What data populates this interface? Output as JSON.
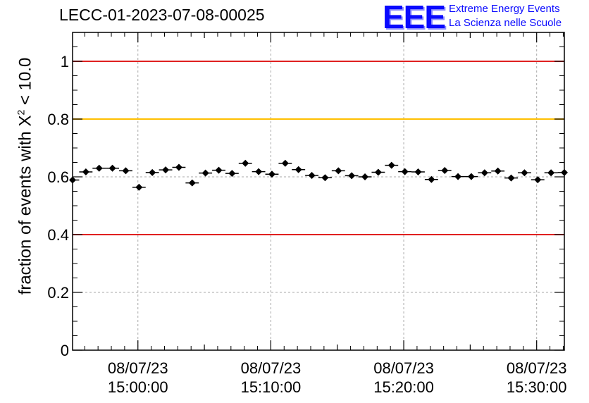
{
  "header": {
    "run_id": "LECC-01-2023-07-08-00025",
    "logo_letters": "EEE",
    "logo_line1": "Extreme Energy Events",
    "logo_line2": "La Scienza nelle Scuole",
    "logo_color": "#0a0aff"
  },
  "ylabel_parts": {
    "prefix": "fraction of events with X",
    "superscript": "2",
    "suffix": " < 10.0"
  },
  "chart_data": {
    "type": "scatter",
    "title": "LECC-01-2023-07-08-00025",
    "ylabel": "fraction of events with X² < 10.0",
    "xlabel": "",
    "ylim": [
      0,
      1.1
    ],
    "x_range": [
      "14:55:05",
      "15:32:05"
    ],
    "x_ticks": [
      {
        "time": "14:55:00",
        "label": ""
      },
      {
        "time": "15:00:00",
        "label": "08/07/23\n15:00:00"
      },
      {
        "time": "15:05:00",
        "label": ""
      },
      {
        "time": "15:10:00",
        "label": "08/07/23\n15:10:00"
      },
      {
        "time": "15:15:00",
        "label": ""
      },
      {
        "time": "15:20:00",
        "label": "08/07/23\n15:20:00"
      },
      {
        "time": "15:25:00",
        "label": ""
      },
      {
        "time": "15:30:00",
        "label": "08/07/23\n15:30:00"
      }
    ],
    "y_ticks": [
      0,
      0.2,
      0.4,
      0.6,
      0.8,
      1
    ],
    "y_tick_labels": [
      "0",
      "0.2",
      "0.4",
      "0.6",
      "0.8",
      "1"
    ],
    "grid": true,
    "reference_lines": [
      {
        "y": 1.0,
        "color": "#e02020"
      },
      {
        "y": 0.8,
        "color": "#ffbf00"
      },
      {
        "y": 0.4,
        "color": "#e02020"
      }
    ],
    "series": [
      {
        "marker": "diamond",
        "color": "#000000",
        "x_bin_width_seconds": 60,
        "x": [
          "14:55:05",
          "14:56:05",
          "14:57:05",
          "14:58:05",
          "14:59:05",
          "15:00:05",
          "15:01:05",
          "15:02:05",
          "15:03:05",
          "15:04:05",
          "15:05:05",
          "15:06:05",
          "15:07:05",
          "15:08:05",
          "15:09:05",
          "15:10:05",
          "15:11:05",
          "15:12:05",
          "15:13:05",
          "15:14:05",
          "15:15:05",
          "15:16:05",
          "15:17:05",
          "15:18:05",
          "15:19:05",
          "15:20:05",
          "15:21:05",
          "15:22:05",
          "15:23:05",
          "15:24:05",
          "15:25:05",
          "15:26:05",
          "15:27:05",
          "15:28:05",
          "15:29:05",
          "15:30:05",
          "15:31:05",
          "15:32:05"
        ],
        "y": [
          0.589,
          0.617,
          0.63,
          0.63,
          0.621,
          0.564,
          0.615,
          0.624,
          0.633,
          0.579,
          0.613,
          0.623,
          0.612,
          0.647,
          0.618,
          0.609,
          0.647,
          0.625,
          0.605,
          0.597,
          0.621,
          0.604,
          0.6,
          0.616,
          0.64,
          0.618,
          0.617,
          0.591,
          0.622,
          0.601,
          0.601,
          0.614,
          0.62,
          0.596,
          0.614,
          0.59,
          0.614,
          0.615
        ],
        "y_error": [
          0.01,
          0.01,
          0.01,
          0.01,
          0.01,
          0.01,
          0.01,
          0.01,
          0.01,
          0.01,
          0.01,
          0.01,
          0.01,
          0.01,
          0.01,
          0.01,
          0.01,
          0.01,
          0.01,
          0.01,
          0.01,
          0.01,
          0.01,
          0.01,
          0.01,
          0.01,
          0.01,
          0.01,
          0.01,
          0.01,
          0.01,
          0.01,
          0.01,
          0.01,
          0.01,
          0.01,
          0.01,
          0.01
        ]
      }
    ]
  }
}
